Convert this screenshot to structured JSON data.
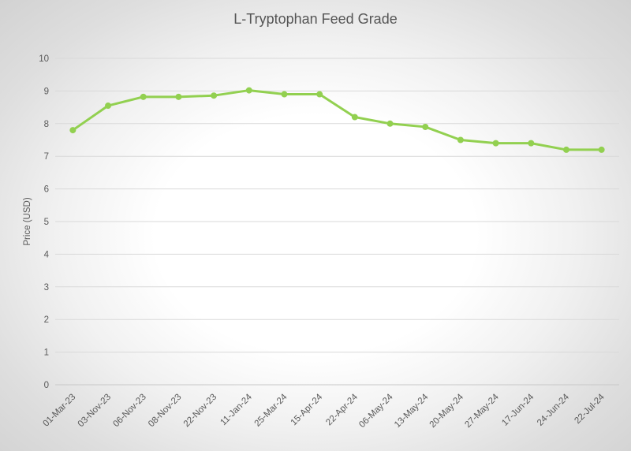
{
  "chart_data": {
    "type": "line",
    "title": "L-Tryptophan Feed Grade",
    "xlabel": "",
    "ylabel": "Price (USD)",
    "ylim": [
      0,
      10
    ],
    "yticks": [
      0,
      1,
      2,
      3,
      4,
      5,
      6,
      7,
      8,
      9,
      10
    ],
    "grid": true,
    "categories": [
      "01-Mar-23",
      "03-Nov-23",
      "06-Nov-23",
      "08-Nov-23",
      "22-Nov-23",
      "11-Jan-24",
      "25-Mar-24",
      "15-Apr-24",
      "22-Apr-24",
      "06-May-24",
      "13-May-24",
      "20-May-24",
      "27-May-24",
      "17-Jun-24",
      "24-Jun-24",
      "22-Jul-24"
    ],
    "series": [
      {
        "name": "L-Tryptophan Feed Grade",
        "color": "#92d050",
        "values": [
          7.8,
          8.55,
          8.82,
          8.82,
          8.86,
          9.02,
          8.9,
          8.9,
          8.2,
          8.0,
          7.9,
          7.5,
          7.4,
          7.4,
          7.2,
          7.2
        ]
      }
    ]
  }
}
